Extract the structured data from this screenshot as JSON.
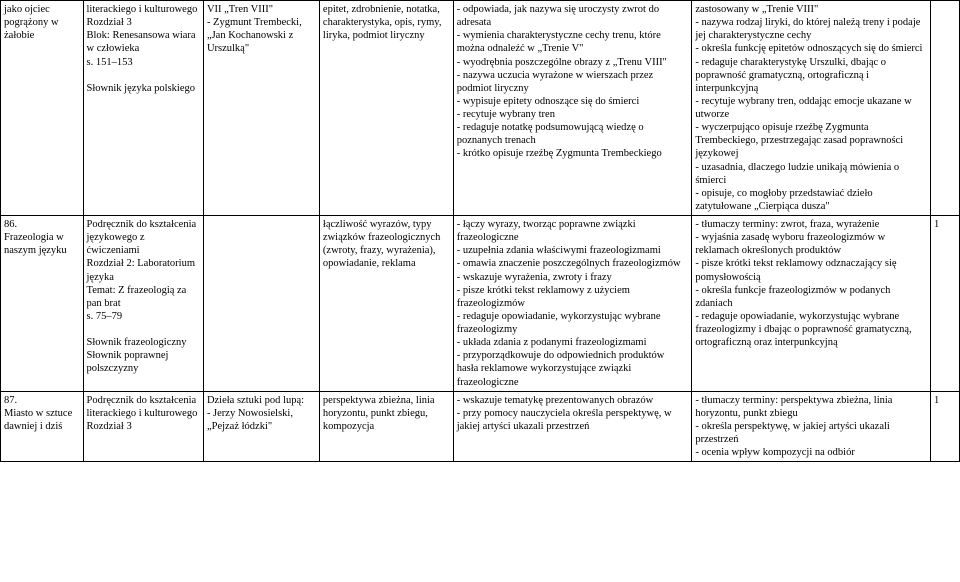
{
  "rows": [
    {
      "c1": "jako ojciec pogrążony w żałobie",
      "c2": "literackiego i kulturowego\nRozdział 3\nBlok: Renesansowa wiara w człowieka\ns. 151–153\n\nSłownik języka polskiego",
      "c3": "VII „Tren VIII\"\n- Zygmunt Trembecki, „Jan Kochanowski z Urszulką\"",
      "c4": "epitet, zdrobnienie, notatka, charakterystyka, opis, rymy, liryka, podmiot liryczny",
      "c5": "- odpowiada, jak nazywa się uroczysty zwrot do adresata\n- wymienia charakterystyczne cechy trenu, które można odnaleźć w „Trenie V\"\n- wyodrębnia poszczególne obrazy z „Trenu VIII\"\n- nazywa uczucia wyrażone w wierszach przez podmiot liryczny\n- wypisuje epitety odnoszące się do śmierci\n- recytuje wybrany tren\n- redaguje notatkę podsumowującą wiedzę o poznanych trenach\n- krótko opisuje rzeźbę Zygmunta Trembeckiego",
      "c6": "zastosowany w „Trenie VIII\"\n- nazywa rodzaj liryki, do której należą treny i podaje jej charakterystyczne cechy\n- określa funkcję epitetów odnoszących się do śmierci\n- redaguje charakterystykę Urszulki, dbając o poprawność gramatyczną, ortograficzną i interpunkcyjną\n- recytuje wybrany tren, oddając emocje ukazane w utworze\n- wyczerpująco opisuje rzeźbę Zygmunta Trembeckiego, przestrzegając zasad poprawności językowej\n- uzasadnia, dlaczego ludzie unikają mówienia o śmierci\n- opisuje, co mogłoby przedstawiać dzieło zatytułowane „Cierpiąca dusza\"",
      "c7": ""
    },
    {
      "c1": "86.\nFrazeologia w naszym języku",
      "c2": "Podręcznik do kształcenia językowego z ćwiczeniami\nRozdział 2: Laboratorium języka\nTemat: Z frazeologią za pan brat\ns. 75–79\n\nSłownik frazeologiczny\nSłownik poprawnej polszczyzny",
      "c3": "",
      "c4": "łączliwość wyrazów, typy związków frazeologicznych (zwroty, frazy, wyrażenia), opowiadanie, reklama",
      "c5": "- łączy wyrazy, tworząc poprawne związki frazeologiczne\n- uzupełnia zdania właściwymi frazeologizmami\n- omawia znaczenie poszczególnych frazeologizmów\n- wskazuje wyrażenia, zwroty i frazy\n- pisze krótki tekst reklamowy z użyciem frazeologizmów\n- redaguje opowiadanie, wykorzystując wybrane frazeologizmy\n- układa zdania z podanymi frazeologizmami\n- przyporządkowuje do odpowiednich produktów hasła reklamowe wykorzystujące związki frazeologiczne",
      "c6": "- tłumaczy terminy: zwrot, fraza, wyrażenie\n- wyjaśnia zasadę wyboru frazeologizmów w reklamach określonych produktów\n- pisze krótki tekst reklamowy odznaczający się pomysłowością\n- określa funkcje frazeologizmów w podanych zdaniach\n- redaguje opowiadanie, wykorzystując wybrane frazeologizmy i dbając o poprawność gramatyczną, ortograficzną oraz interpunkcyjną",
      "c7": "1"
    },
    {
      "c1": "87.\nMiasto w sztuce dawniej i dziś",
      "c2": "Podręcznik do kształcenia literackiego i kulturowego\nRozdział 3",
      "c3": "Dzieła sztuki pod lupą:\n- Jerzy Nowosielski, „Pejzaż łódzki\"",
      "c4": "perspektywa zbieżna, linia horyzontu, punkt zbiegu, kompozycja",
      "c5": "- wskazuje tematykę prezentowanych obrazów\n- przy pomocy nauczyciela określa perspektywę, w jakiej artyści ukazali przestrzeń",
      "c6": "- tłumaczy terminy: perspektywa zbieżna, linia horyzontu, punkt zbiegu\n- określa perspektywę, w jakiej artyści ukazali przestrzeń\n- ocenia wpływ kompozycji na odbiór",
      "c7": "1"
    }
  ]
}
